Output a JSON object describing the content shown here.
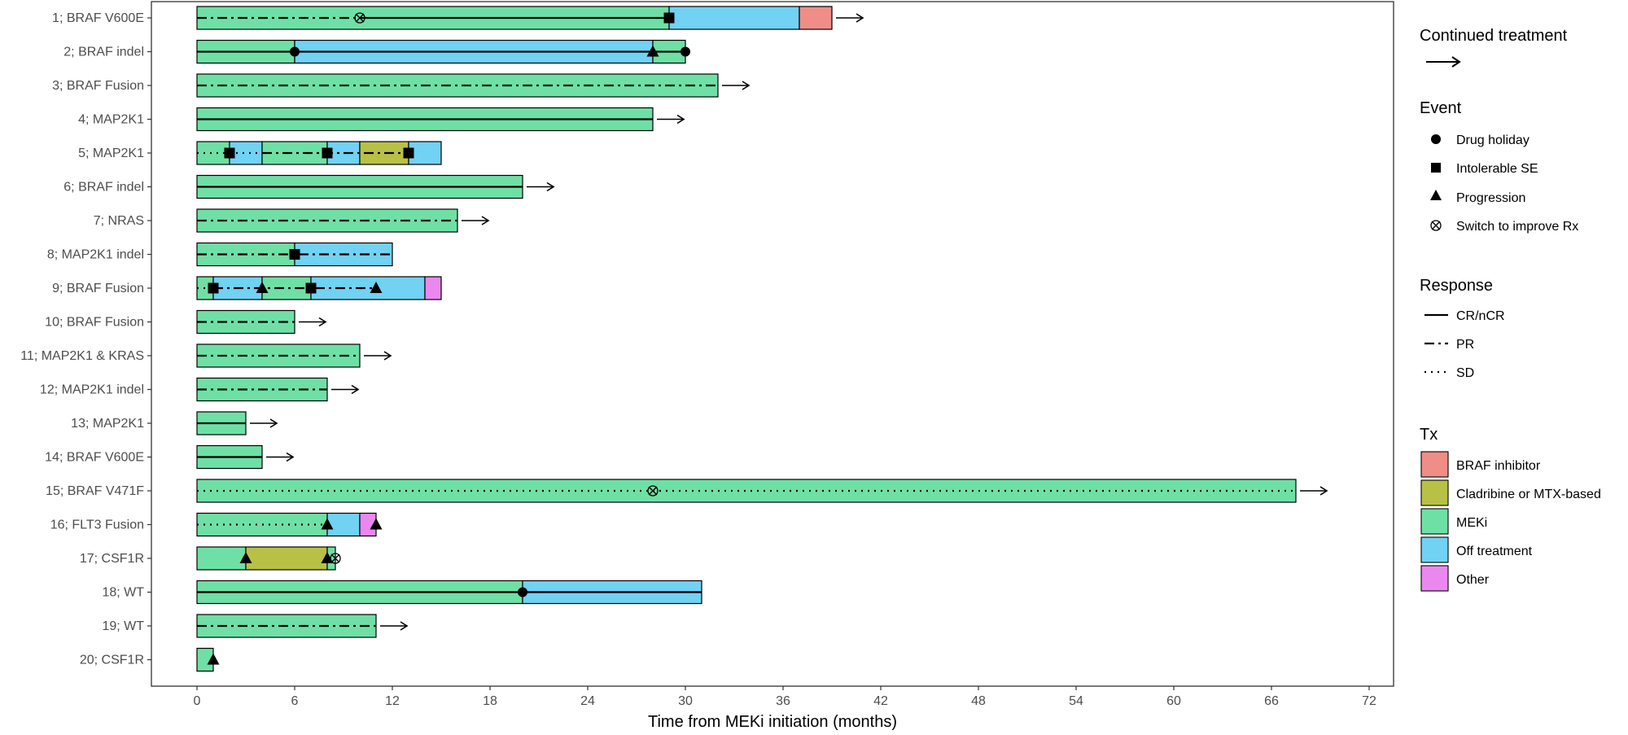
{
  "chart_data": {
    "type": "swimmer",
    "xlabel": "Time from MEKi initiation (months)",
    "xlim": [
      -2.8,
      73.5
    ],
    "xticks": [
      0,
      6,
      12,
      18,
      24,
      30,
      36,
      42,
      48,
      54,
      60,
      66,
      72
    ],
    "grid": false,
    "legend_position": "right",
    "colors": {
      "BRAF inhibitor": "#f08d87",
      "Cladribine or MTX-based": "#b8c145",
      "MEKi": "#6fe0a5",
      "Off treatment": "#71d2f3",
      "Other": "#ea88ef"
    },
    "patients": [
      {
        "label": "1; BRAF V600E",
        "continued": true,
        "segments": [
          {
            "tx": "MEKi",
            "start": 0,
            "end": 29
          },
          {
            "tx": "Off treatment",
            "start": 29,
            "end": 37
          },
          {
            "tx": "BRAF inhibitor",
            "start": 37,
            "end": 39
          }
        ],
        "responses": [
          {
            "type": "PR",
            "start": 0,
            "end": 10
          },
          {
            "type": "CR/nCR",
            "start": 10,
            "end": 29
          }
        ],
        "events": [
          {
            "type": "Switch to improve Rx",
            "time": 10
          },
          {
            "type": "Intolerable SE",
            "time": 29
          }
        ]
      },
      {
        "label": "2; BRAF indel",
        "continued": false,
        "segments": [
          {
            "tx": "MEKi",
            "start": 0,
            "end": 6
          },
          {
            "tx": "Off treatment",
            "start": 6,
            "end": 28
          },
          {
            "tx": "MEKi",
            "start": 28,
            "end": 30
          }
        ],
        "responses": [
          {
            "type": "CR/nCR",
            "start": 0,
            "end": 30
          }
        ],
        "events": [
          {
            "type": "Drug holiday",
            "time": 6
          },
          {
            "type": "Progression",
            "time": 28
          },
          {
            "type": "Drug holiday",
            "time": 30
          }
        ]
      },
      {
        "label": "3; BRAF Fusion",
        "continued": true,
        "segments": [
          {
            "tx": "MEKi",
            "start": 0,
            "end": 32
          }
        ],
        "responses": [
          {
            "type": "PR",
            "start": 0,
            "end": 32
          }
        ],
        "events": []
      },
      {
        "label": "4; MAP2K1",
        "continued": true,
        "segments": [
          {
            "tx": "MEKi",
            "start": 0,
            "end": 28
          }
        ],
        "responses": [
          {
            "type": "CR/nCR",
            "start": 0,
            "end": 28
          }
        ],
        "events": []
      },
      {
        "label": "5; MAP2K1",
        "continued": false,
        "segments": [
          {
            "tx": "MEKi",
            "start": 0,
            "end": 2
          },
          {
            "tx": "Off treatment",
            "start": 2,
            "end": 4
          },
          {
            "tx": "MEKi",
            "start": 4,
            "end": 8
          },
          {
            "tx": "Off treatment",
            "start": 8,
            "end": 10
          },
          {
            "tx": "Cladribine or MTX-based",
            "start": 10,
            "end": 13
          },
          {
            "tx": "Off treatment",
            "start": 13,
            "end": 15
          }
        ],
        "responses": [
          {
            "type": "SD",
            "start": 0,
            "end": 4
          },
          {
            "type": "PR",
            "start": 4,
            "end": 13
          }
        ],
        "events": [
          {
            "type": "Intolerable SE",
            "time": 2
          },
          {
            "type": "Intolerable SE",
            "time": 8
          },
          {
            "type": "Intolerable SE",
            "time": 13
          }
        ]
      },
      {
        "label": "6; BRAF indel",
        "continued": true,
        "segments": [
          {
            "tx": "MEKi",
            "start": 0,
            "end": 20
          }
        ],
        "responses": [
          {
            "type": "CR/nCR",
            "start": 0,
            "end": 20
          }
        ],
        "events": []
      },
      {
        "label": "7; NRAS",
        "continued": true,
        "segments": [
          {
            "tx": "MEKi",
            "start": 0,
            "end": 16
          }
        ],
        "responses": [
          {
            "type": "PR",
            "start": 0,
            "end": 16
          }
        ],
        "events": []
      },
      {
        "label": "8; MAP2K1 indel",
        "continued": false,
        "segments": [
          {
            "tx": "MEKi",
            "start": 0,
            "end": 6
          },
          {
            "tx": "Off treatment",
            "start": 6,
            "end": 12
          }
        ],
        "responses": [
          {
            "type": "PR",
            "start": 0,
            "end": 12
          }
        ],
        "events": [
          {
            "type": "Intolerable SE",
            "time": 6
          }
        ]
      },
      {
        "label": "9; BRAF Fusion",
        "continued": false,
        "segments": [
          {
            "tx": "MEKi",
            "start": 0,
            "end": 1
          },
          {
            "tx": "Off treatment",
            "start": 1,
            "end": 4
          },
          {
            "tx": "MEKi",
            "start": 4,
            "end": 7
          },
          {
            "tx": "Off treatment",
            "start": 7,
            "end": 14
          },
          {
            "tx": "Other",
            "start": 14,
            "end": 15
          }
        ],
        "responses": [
          {
            "type": "SD",
            "start": 0,
            "end": 1
          },
          {
            "type": "PR",
            "start": 1,
            "end": 11
          }
        ],
        "events": [
          {
            "type": "Intolerable SE",
            "time": 1
          },
          {
            "type": "Progression",
            "time": 4
          },
          {
            "type": "Intolerable SE",
            "time": 7
          },
          {
            "type": "Progression",
            "time": 11
          }
        ]
      },
      {
        "label": "10; BRAF Fusion",
        "continued": true,
        "segments": [
          {
            "tx": "MEKi",
            "start": 0,
            "end": 6
          }
        ],
        "responses": [
          {
            "type": "PR",
            "start": 0,
            "end": 6
          }
        ],
        "events": []
      },
      {
        "label": "11; MAP2K1 & KRAS",
        "continued": true,
        "segments": [
          {
            "tx": "MEKi",
            "start": 0,
            "end": 10
          }
        ],
        "responses": [
          {
            "type": "PR",
            "start": 0,
            "end": 10
          }
        ],
        "events": []
      },
      {
        "label": "12; MAP2K1 indel",
        "continued": true,
        "segments": [
          {
            "tx": "MEKi",
            "start": 0,
            "end": 8
          }
        ],
        "responses": [
          {
            "type": "PR",
            "start": 0,
            "end": 8
          }
        ],
        "events": []
      },
      {
        "label": "13; MAP2K1",
        "continued": true,
        "segments": [
          {
            "tx": "MEKi",
            "start": 0,
            "end": 3
          }
        ],
        "responses": [
          {
            "type": "CR/nCR",
            "start": 0,
            "end": 3
          }
        ],
        "events": []
      },
      {
        "label": "14; BRAF V600E",
        "continued": true,
        "segments": [
          {
            "tx": "MEKi",
            "start": 0,
            "end": 4
          }
        ],
        "responses": [
          {
            "type": "CR/nCR",
            "start": 0,
            "end": 4
          }
        ],
        "events": []
      },
      {
        "label": "15; BRAF V471F",
        "continued": true,
        "segments": [
          {
            "tx": "MEKi",
            "start": 0,
            "end": 67.5
          }
        ],
        "responses": [
          {
            "type": "SD",
            "start": 0,
            "end": 67.5
          }
        ],
        "events": [
          {
            "type": "Switch to improve Rx",
            "time": 28
          }
        ]
      },
      {
        "label": "16; FLT3 Fusion",
        "continued": false,
        "segments": [
          {
            "tx": "MEKi",
            "start": 0,
            "end": 8
          },
          {
            "tx": "Off treatment",
            "start": 8,
            "end": 10
          },
          {
            "tx": "Other",
            "start": 10,
            "end": 11
          }
        ],
        "responses": [
          {
            "type": "SD",
            "start": 0,
            "end": 8
          }
        ],
        "events": [
          {
            "type": "Progression",
            "time": 8
          },
          {
            "type": "Progression",
            "time": 11
          }
        ]
      },
      {
        "label": "17; CSF1R",
        "continued": false,
        "segments": [
          {
            "tx": "MEKi",
            "start": 0,
            "end": 3
          },
          {
            "tx": "Cladribine or MTX-based",
            "start": 3,
            "end": 8
          },
          {
            "tx": "MEKi",
            "start": 8,
            "end": 8.5
          }
        ],
        "responses": [],
        "events": [
          {
            "type": "Progression",
            "time": 3
          },
          {
            "type": "Progression",
            "time": 8
          },
          {
            "type": "Switch to improve Rx",
            "time": 8.5
          }
        ]
      },
      {
        "label": "18; WT",
        "continued": false,
        "segments": [
          {
            "tx": "MEKi",
            "start": 0,
            "end": 20
          },
          {
            "tx": "Off treatment",
            "start": 20,
            "end": 31
          }
        ],
        "responses": [
          {
            "type": "CR/nCR",
            "start": 0,
            "end": 31
          }
        ],
        "events": [
          {
            "type": "Drug holiday",
            "time": 20
          }
        ]
      },
      {
        "label": "19; WT",
        "continued": true,
        "segments": [
          {
            "tx": "MEKi",
            "start": 0,
            "end": 11
          }
        ],
        "responses": [
          {
            "type": "PR",
            "start": 0,
            "end": 11
          }
        ],
        "events": []
      },
      {
        "label": "20; CSF1R",
        "continued": false,
        "segments": [
          {
            "tx": "MEKi",
            "start": 0,
            "end": 1
          }
        ],
        "responses": [],
        "events": [
          {
            "type": "Progression",
            "time": 1
          }
        ]
      }
    ]
  },
  "legend": {
    "continued": {
      "title": "Continued treatment"
    },
    "event": {
      "title": "Event",
      "items": [
        {
          "label": "Drug holiday",
          "icon": "circle-icon"
        },
        {
          "label": "Intolerable SE",
          "icon": "square-icon"
        },
        {
          "label": "Progression",
          "icon": "triangle-icon"
        },
        {
          "label": "Switch to improve Rx",
          "icon": "circle-x-icon"
        }
      ]
    },
    "response": {
      "title": "Response",
      "items": [
        {
          "label": "CR/nCR",
          "style": "solid"
        },
        {
          "label": "PR",
          "style": "dashdot"
        },
        {
          "label": "SD",
          "style": "dotted"
        }
      ]
    },
    "tx": {
      "title": "Tx",
      "items": [
        {
          "label": "BRAF inhibitor",
          "color": "#f08d87"
        },
        {
          "label": "Cladribine or MTX-based",
          "color": "#b8c145"
        },
        {
          "label": "MEKi",
          "color": "#6fe0a5"
        },
        {
          "label": "Off treatment",
          "color": "#71d2f3"
        },
        {
          "label": "Other",
          "color": "#ea88ef"
        }
      ]
    }
  }
}
